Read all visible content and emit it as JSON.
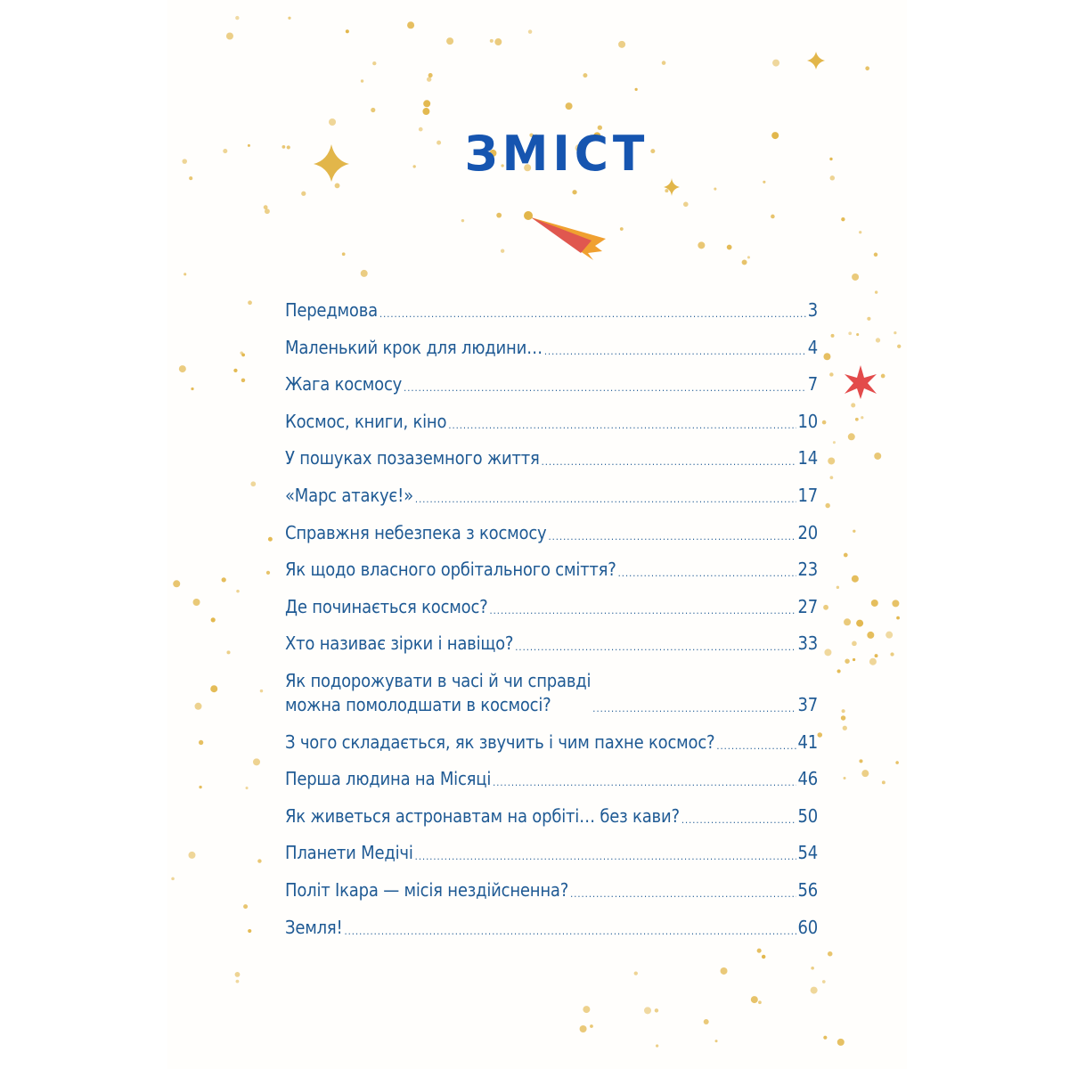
{
  "title": "ЗМІСТ",
  "colors": {
    "title": "#1655b0",
    "text": "#1f5a94",
    "stars": "#e2b64a",
    "comet": "#e0574f",
    "red_star": "#e34b4b"
  },
  "toc": [
    {
      "label": "Передмова",
      "page": "3"
    },
    {
      "label": "Маленький крок для людини…",
      "page": "4"
    },
    {
      "label": "Жага космосу",
      "page": "7"
    },
    {
      "label": "Космос, книги, кіно",
      "page": "10"
    },
    {
      "label": "У пошуках позаземного життя",
      "page": "14"
    },
    {
      "label": "«Марс атакує!»",
      "page": "17"
    },
    {
      "label": "Справжня небезпека з космосу",
      "page": "20"
    },
    {
      "label": "Як щодо власного орбітального сміття?",
      "page": "23"
    },
    {
      "label": "Де починається космос?",
      "page": "27"
    },
    {
      "label": "Хто називає зірки і навіщо?",
      "page": "33"
    },
    {
      "label": "Як подорожувати в часі й чи справді\nможна помолодшати в космосі?",
      "page": "37"
    },
    {
      "label": "З чого складається, як звучить і чим пахне космос?",
      "page": "41"
    },
    {
      "label": "Перша людина на Місяці",
      "page": "46"
    },
    {
      "label": "Як живеться астронавтам на орбіті… без кави?",
      "page": "50"
    },
    {
      "label": "Планети Медічі",
      "page": "54"
    },
    {
      "label": "Політ Ікара — місія нездійсненна?",
      "page": "56"
    },
    {
      "label": "Земля!",
      "page": "60"
    }
  ]
}
